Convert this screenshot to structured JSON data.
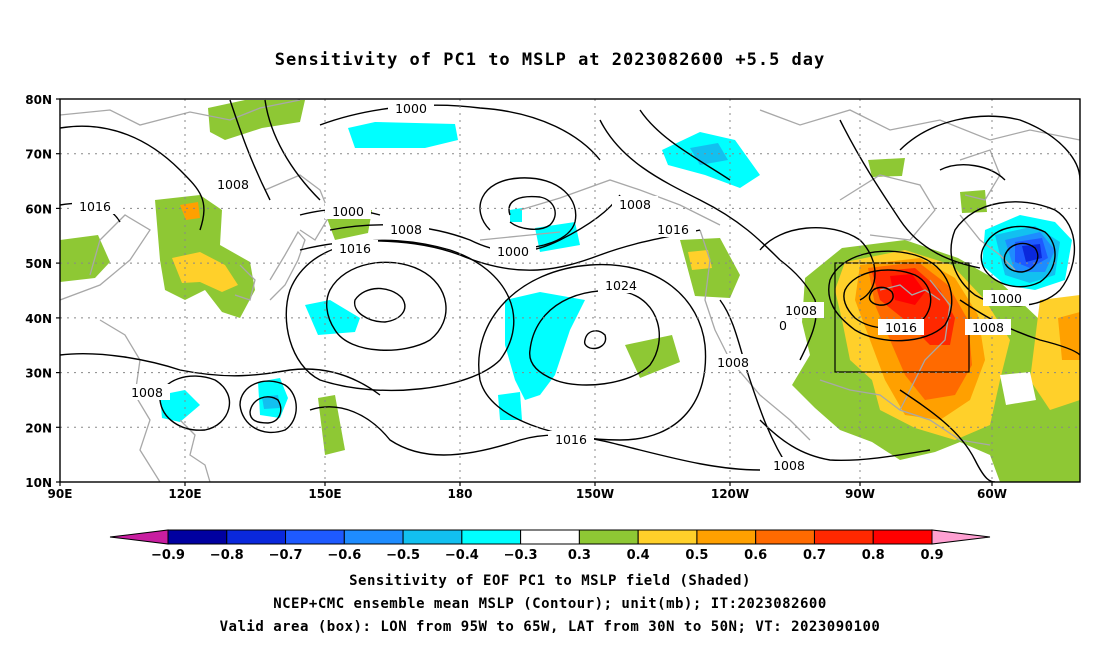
{
  "title": "Sensitivity of PC1 to MSLP at 2023082600 +5.5 day",
  "lat_labels": [
    "80N",
    "70N",
    "60N",
    "50N",
    "40N",
    "30N",
    "20N",
    "10N"
  ],
  "lon_labels": [
    "90E",
    "120E",
    "150E",
    "180",
    "150W",
    "120W",
    "90W",
    "60W"
  ],
  "colorbar": {
    "labels": [
      "-0.9",
      "-0.8",
      "-0.7",
      "-0.6",
      "-0.5",
      "-0.4",
      "-0.3",
      "0.3",
      "0.4",
      "0.5",
      "0.6",
      "0.7",
      "0.8",
      "0.9"
    ],
    "colors": [
      "#c81ea0",
      "#0000a0",
      "#0a28dc",
      "#1e5aff",
      "#1e8cff",
      "#12c0f0",
      "#00ffff",
      "#ffffff",
      "#8ec834",
      "#ffd02a",
      "#ffa000",
      "#ff6a00",
      "#ff2800",
      "#ff0000",
      "#ffa0d2"
    ]
  },
  "contour_labels": [
    "1000",
    "1008",
    "1016",
    "1000",
    "1008",
    "1016",
    "1000",
    "1008",
    "1016",
    "1024",
    "1008",
    "1016",
    "1008",
    "1008",
    "1016",
    "1008",
    "1000",
    "1008",
    "1016",
    "1008",
    "0"
  ],
  "captions": {
    "line1": "Sensitivity of EOF PC1 to MSLP field (Shaded)",
    "line2": "NCEP+CMC ensemble mean MSLP (Contour); unit(mb); IT:2023082600",
    "line3": "Valid area (box): LON from 95W to 65W, LAT from 30N to 50N; VT: 2023090100"
  },
  "valid_box": {
    "lon_west": "95W",
    "lon_east": "65W",
    "lat_south": "30N",
    "lat_north": "50N"
  }
}
